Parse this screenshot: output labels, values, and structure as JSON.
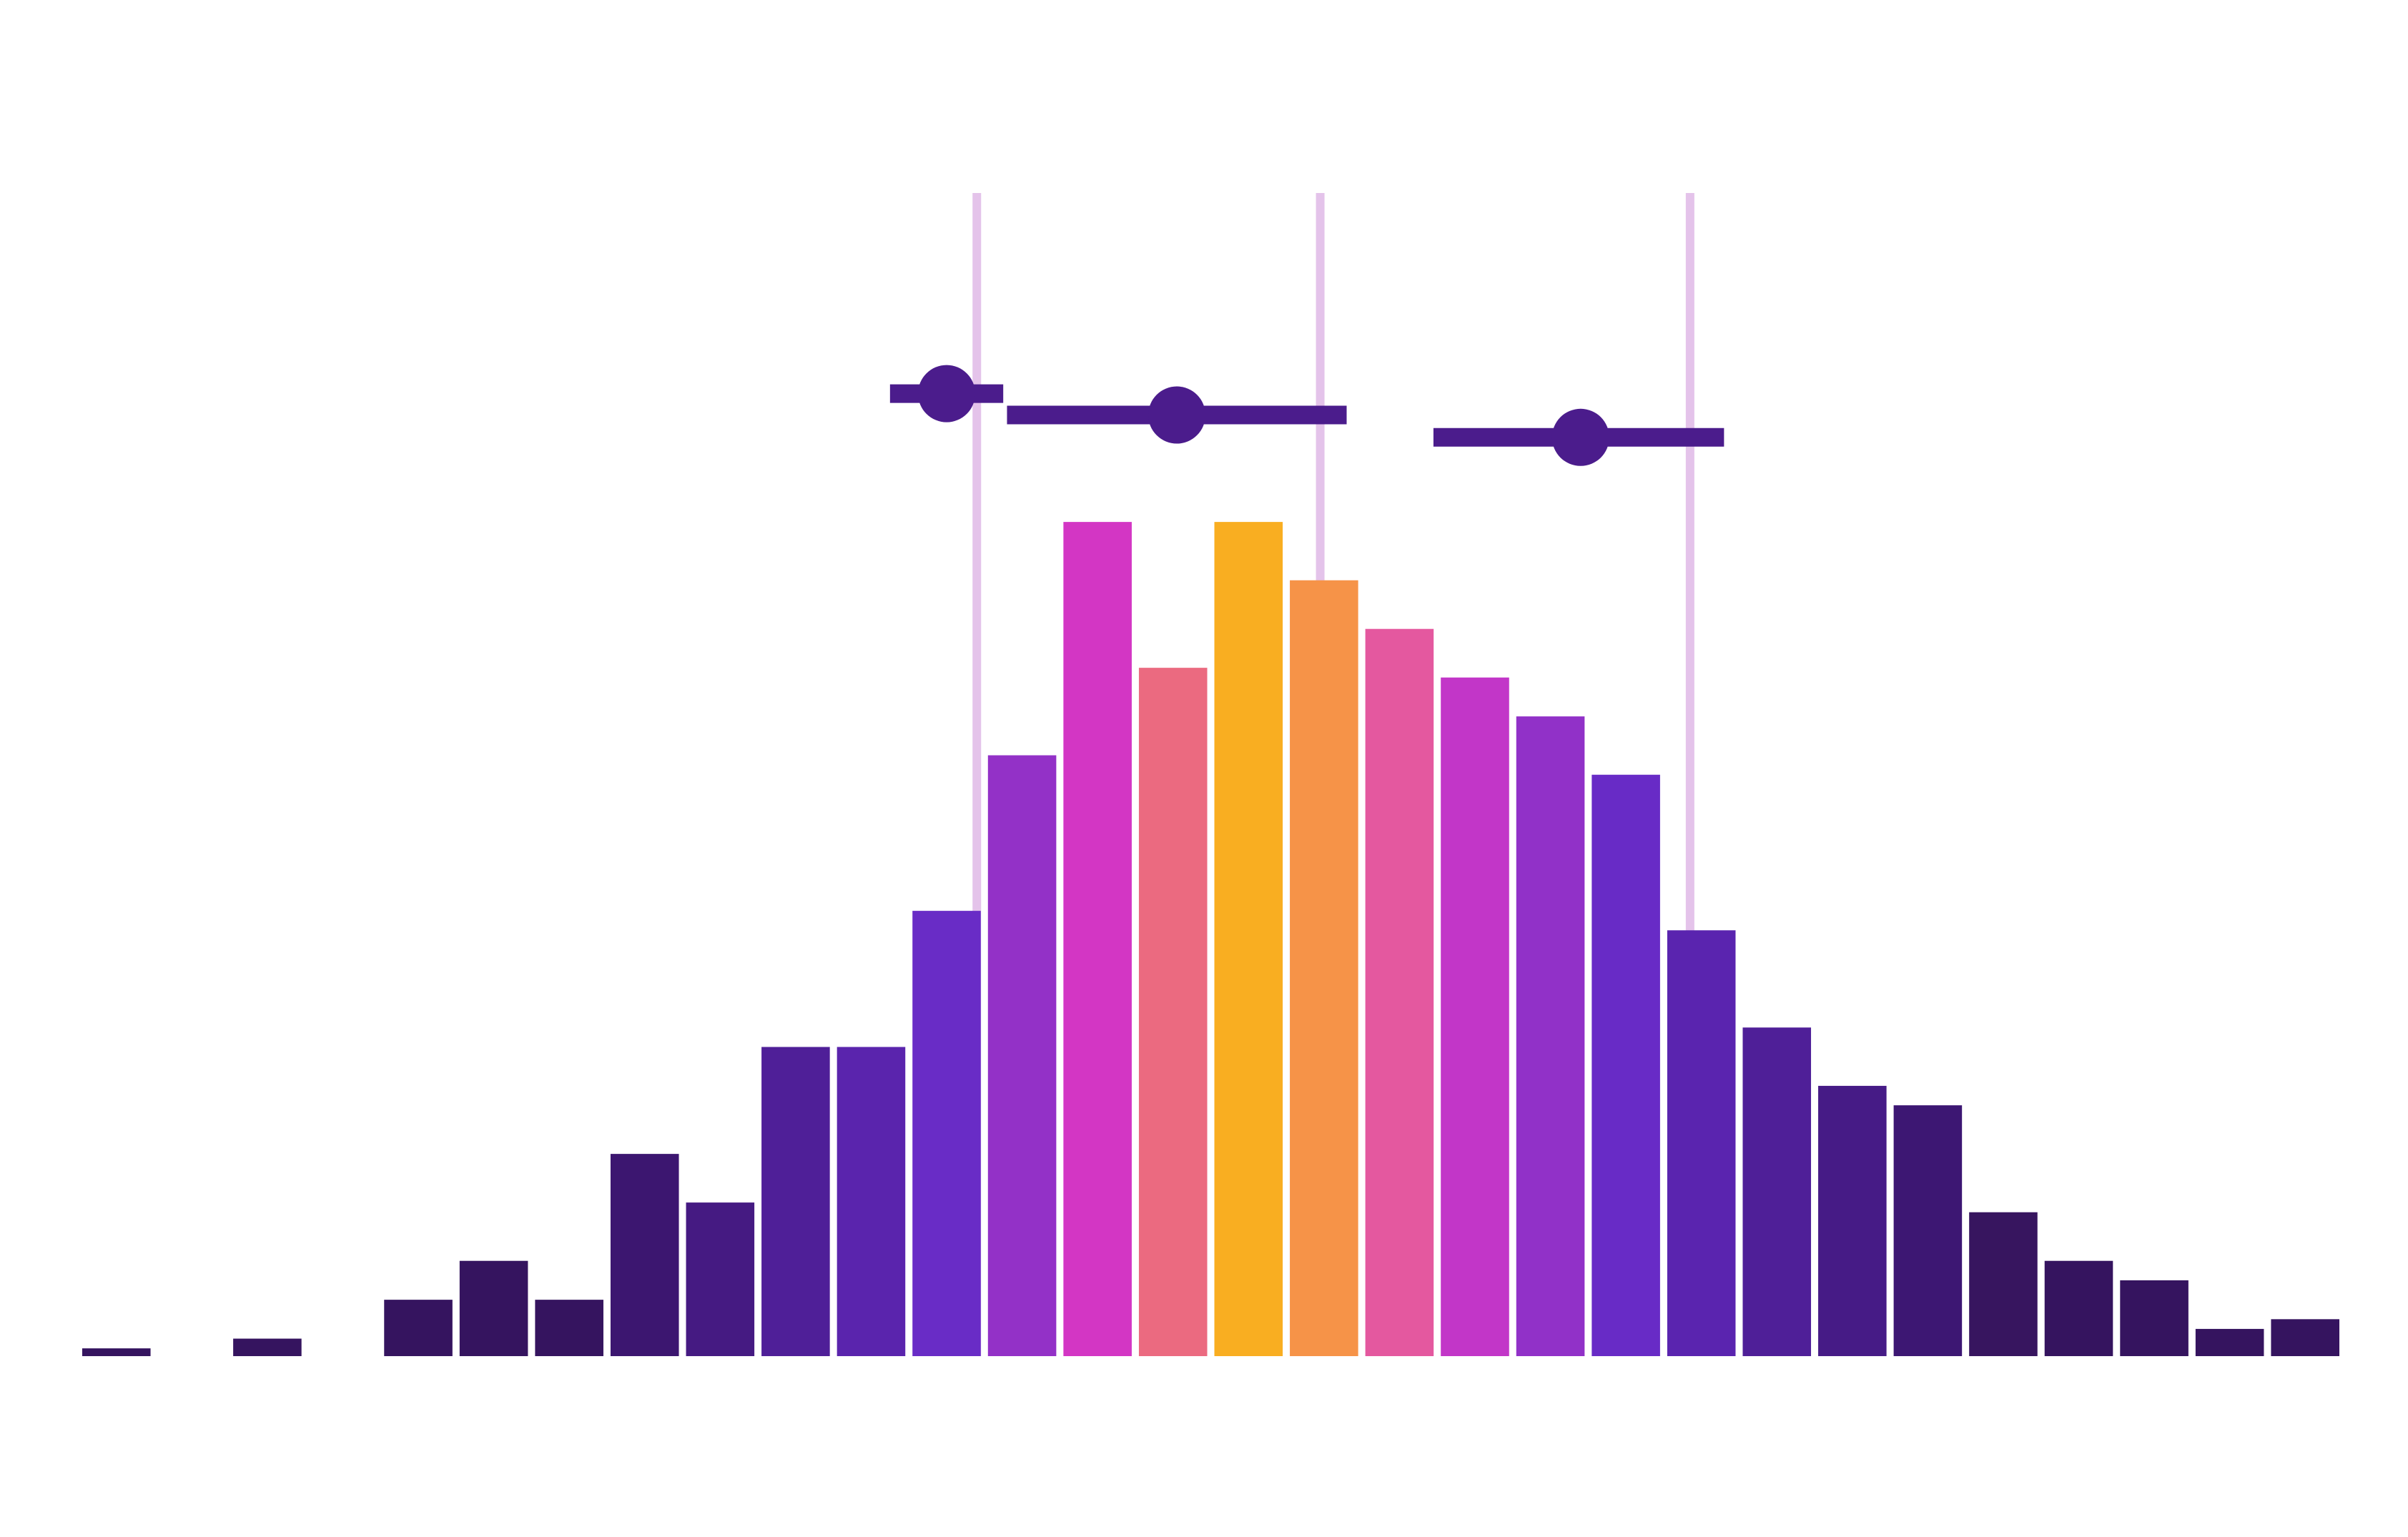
{
  "chart_data": {
    "type": "bar",
    "title": "",
    "xlabel": "",
    "ylabel": "",
    "grid": false,
    "legend": "none",
    "xlim": [
      0,
      30
    ],
    "ylim": [
      0,
      95
    ],
    "bins": [
      {
        "x": 0.5,
        "value": 0.8,
        "color": "#35145f"
      },
      {
        "x": 2.5,
        "value": 1.8,
        "color": "#35145f"
      },
      {
        "x": 4.5,
        "value": 5.8,
        "color": "#35145f"
      },
      {
        "x": 5.5,
        "value": 9.8,
        "color": "#35145f"
      },
      {
        "x": 6.5,
        "value": 5.8,
        "color": "#35145f"
      },
      {
        "x": 7.5,
        "value": 20.8,
        "color": "#3c1670"
      },
      {
        "x": 8.5,
        "value": 15.8,
        "color": "#451a82"
      },
      {
        "x": 9.5,
        "value": 31.8,
        "color": "#4f1f98"
      },
      {
        "x": 10.5,
        "value": 31.8,
        "color": "#5a24ad"
      },
      {
        "x": 11.5,
        "value": 45.8,
        "color": "#692cc6"
      },
      {
        "x": 12.5,
        "value": 61.8,
        "color": "#9331c7"
      },
      {
        "x": 13.5,
        "value": 85.8,
        "color": "#d336c4"
      },
      {
        "x": 14.5,
        "value": 70.8,
        "color": "#eb6a80"
      },
      {
        "x": 15.5,
        "value": 85.8,
        "color": "#f9ae21"
      },
      {
        "x": 16.5,
        "value": 79.8,
        "color": "#f69348"
      },
      {
        "x": 17.5,
        "value": 74.8,
        "color": "#e4589f"
      },
      {
        "x": 18.5,
        "value": 69.8,
        "color": "#c236c8"
      },
      {
        "x": 19.5,
        "value": 65.8,
        "color": "#9131c8"
      },
      {
        "x": 20.5,
        "value": 59.8,
        "color": "#682bc6"
      },
      {
        "x": 21.5,
        "value": 43.8,
        "color": "#5a24af"
      },
      {
        "x": 22.5,
        "value": 33.8,
        "color": "#4f1f98"
      },
      {
        "x": 23.5,
        "value": 27.8,
        "color": "#461b86"
      },
      {
        "x": 24.5,
        "value": 25.8,
        "color": "#3d1773"
      },
      {
        "x": 25.5,
        "value": 14.8,
        "color": "#37155f"
      },
      {
        "x": 26.5,
        "value": 9.8,
        "color": "#35145f"
      },
      {
        "x": 27.5,
        "value": 7.8,
        "color": "#35145f"
      },
      {
        "x": 28.5,
        "value": 2.8,
        "color": "#35145f"
      },
      {
        "x": 29.5,
        "value": 3.8,
        "color": "#35145f"
      }
    ],
    "reference_lines": [
      {
        "x": 11.9,
        "color": "#e4c3ea"
      },
      {
        "x": 16.45,
        "color": "#e4c3ea"
      },
      {
        "x": 21.35,
        "color": "#e4c3ea"
      }
    ],
    "intervals": [
      {
        "center": 11.5,
        "low": 10.75,
        "high": 12.25,
        "y": 99,
        "color": "#4b1c8c"
      },
      {
        "center": 14.55,
        "low": 12.3,
        "high": 16.8,
        "y": 96.8,
        "color": "#4b1c8c"
      },
      {
        "center": 19.9,
        "low": 17.95,
        "high": 21.8,
        "y": 94.5,
        "color": "#4b1c8c"
      }
    ]
  }
}
